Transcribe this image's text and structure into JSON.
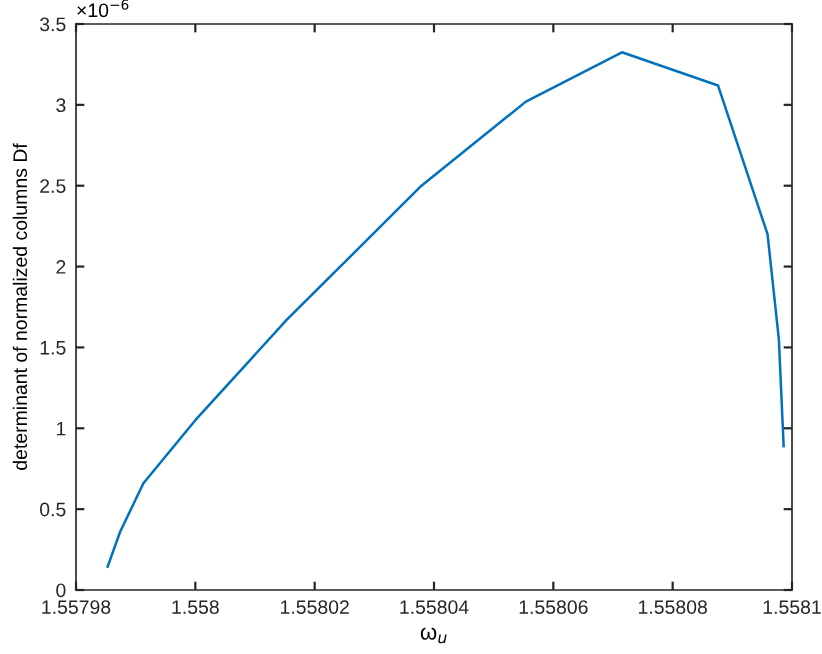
{
  "chart_data": {
    "type": "line",
    "xlabel": "ω$_{u}$",
    "ylabel": "determinant of normalized columns Df",
    "annotations": [
      "×10$^{−6}$"
    ],
    "x": [
      1.5579853,
      1.5579874,
      1.5579913,
      1.558,
      1.5580153,
      1.5580379,
      1.5580554,
      1.5580715,
      1.5580876,
      1.5580959,
      1.5580978,
      1.5580986
    ],
    "series": [
      {
        "color": "#0072bd",
        "values": [
          0.145,
          0.36,
          0.66,
          1.05,
          1.67,
          2.5,
          3.02,
          3.325,
          3.12,
          2.2,
          1.55,
          0.89
        ]
      }
    ],
    "xlim": [
      1.55798,
      1.5581
    ],
    "xticks": [
      1.55798,
      1.558,
      1.55802,
      1.55804,
      1.55806,
      1.55808,
      1.5581
    ],
    "ylim": [
      0,
      3.5
    ],
    "yticks": [
      0,
      0.5,
      1,
      1.5,
      2,
      2.5,
      3,
      3.5
    ],
    "grid": false,
    "legend": false,
    "marker": "none",
    "line_style": "solid"
  }
}
